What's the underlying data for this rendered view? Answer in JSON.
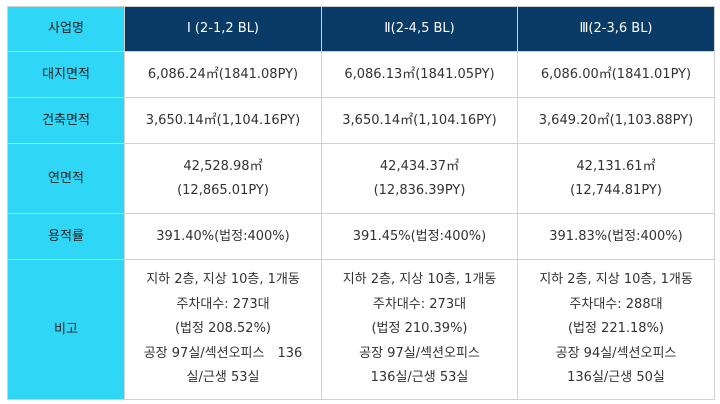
{
  "header": {
    "corner": "사업명",
    "columns": [
      "Ⅰ (2-1,2 BL)",
      "Ⅱ(2-4,5 BL)",
      "Ⅲ(2-3,6 BL)"
    ]
  },
  "rows": [
    {
      "label": "대지면적",
      "values": [
        [
          "6,086.24㎡(1841.08PY)"
        ],
        [
          "6,086.13㎡(1841.05PY)"
        ],
        [
          "6,086.00㎡(1841.01PY)"
        ]
      ]
    },
    {
      "label": "건축면적",
      "values": [
        [
          "3,650.14㎡(1,104.16PY)"
        ],
        [
          "3,650.14㎡(1,104.16PY)"
        ],
        [
          "3,649.20㎡(1,103.88PY)"
        ]
      ]
    },
    {
      "label": "연면적",
      "values": [
        [
          "42,528.98㎡",
          "(12,865.01PY)"
        ],
        [
          "42,434.37㎡",
          "(12,836.39PY)"
        ],
        [
          "42,131.61㎡",
          "(12,744.81PY)"
        ]
      ]
    },
    {
      "label": "용적률",
      "values": [
        [
          "391.40%(법정:400%)"
        ],
        [
          "391.45%(법정:400%)"
        ],
        [
          "391.83%(법정:400%)"
        ]
      ]
    },
    {
      "label": "비고",
      "values": [
        [
          "지하 2층, 지상 10층, 1개동",
          "주차대수: 273대",
          "(법정 208.52%)",
          "공장 97실/섹션오피스　136",
          "실/근생 53실"
        ],
        [
          "지하 2층, 지상 10층, 1개동",
          "주차대수: 273대",
          "(법정 210.39%)",
          "공장 97실/섹션오피스",
          "136실/근생 53실"
        ],
        [
          "지하 2층, 지상 10층, 1개동",
          "주차대수: 288대",
          "(법정 221.18%)",
          "공장 94실/섹션오피스",
          "136실/근생 50실"
        ]
      ]
    }
  ],
  "colors": {
    "row_header_bg": "#2fd6f6",
    "column_header_bg": "#0a3a66",
    "border": "#d0d0d0"
  }
}
